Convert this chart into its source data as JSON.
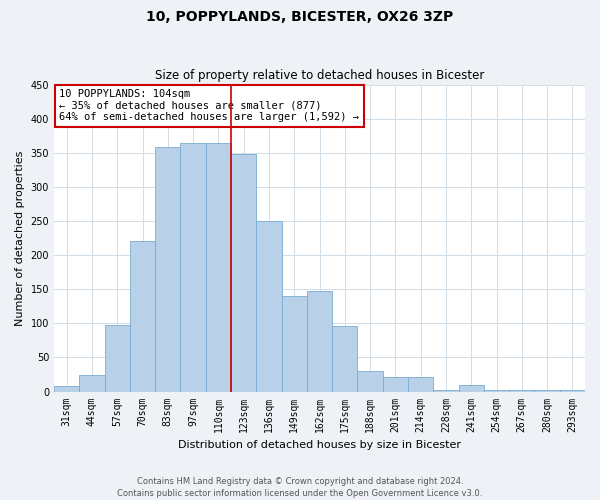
{
  "title": "10, POPPYLANDS, BICESTER, OX26 3ZP",
  "subtitle": "Size of property relative to detached houses in Bicester",
  "xlabel": "Distribution of detached houses by size in Bicester",
  "ylabel": "Number of detached properties",
  "categories": [
    "31sqm",
    "44sqm",
    "57sqm",
    "70sqm",
    "83sqm",
    "97sqm",
    "110sqm",
    "123sqm",
    "136sqm",
    "149sqm",
    "162sqm",
    "175sqm",
    "188sqm",
    "201sqm",
    "214sqm",
    "228sqm",
    "241sqm",
    "254sqm",
    "267sqm",
    "280sqm",
    "293sqm"
  ],
  "values": [
    8,
    25,
    98,
    220,
    358,
    365,
    365,
    348,
    250,
    140,
    148,
    96,
    30,
    22,
    22,
    2,
    10,
    2,
    2,
    2,
    2
  ],
  "bar_color": "#b8d0e8",
  "bar_edge_color": "#7aadcf",
  "vline_x": 6.5,
  "vline_color": "#cc0000",
  "annotation_text": "10 POPPYLANDS: 104sqm\n← 35% of detached houses are smaller (877)\n64% of semi-detached houses are larger (1,592) →",
  "annotation_box_color": "#ffffff",
  "annotation_box_edge_color": "#cc0000",
  "ylim": [
    0,
    450
  ],
  "yticks": [
    0,
    50,
    100,
    150,
    200,
    250,
    300,
    350,
    400,
    450
  ],
  "footer_text": "Contains HM Land Registry data © Crown copyright and database right 2024.\nContains public sector information licensed under the Open Government Licence v3.0.",
  "background_color": "#eef2f7",
  "plot_background_color": "#ffffff",
  "grid_color": "#d0dde8",
  "title_fontsize": 10,
  "subtitle_fontsize": 8.5,
  "ylabel_fontsize": 8,
  "xlabel_fontsize": 8,
  "tick_fontsize": 7,
  "annot_fontsize": 7.5,
  "footer_fontsize": 6
}
